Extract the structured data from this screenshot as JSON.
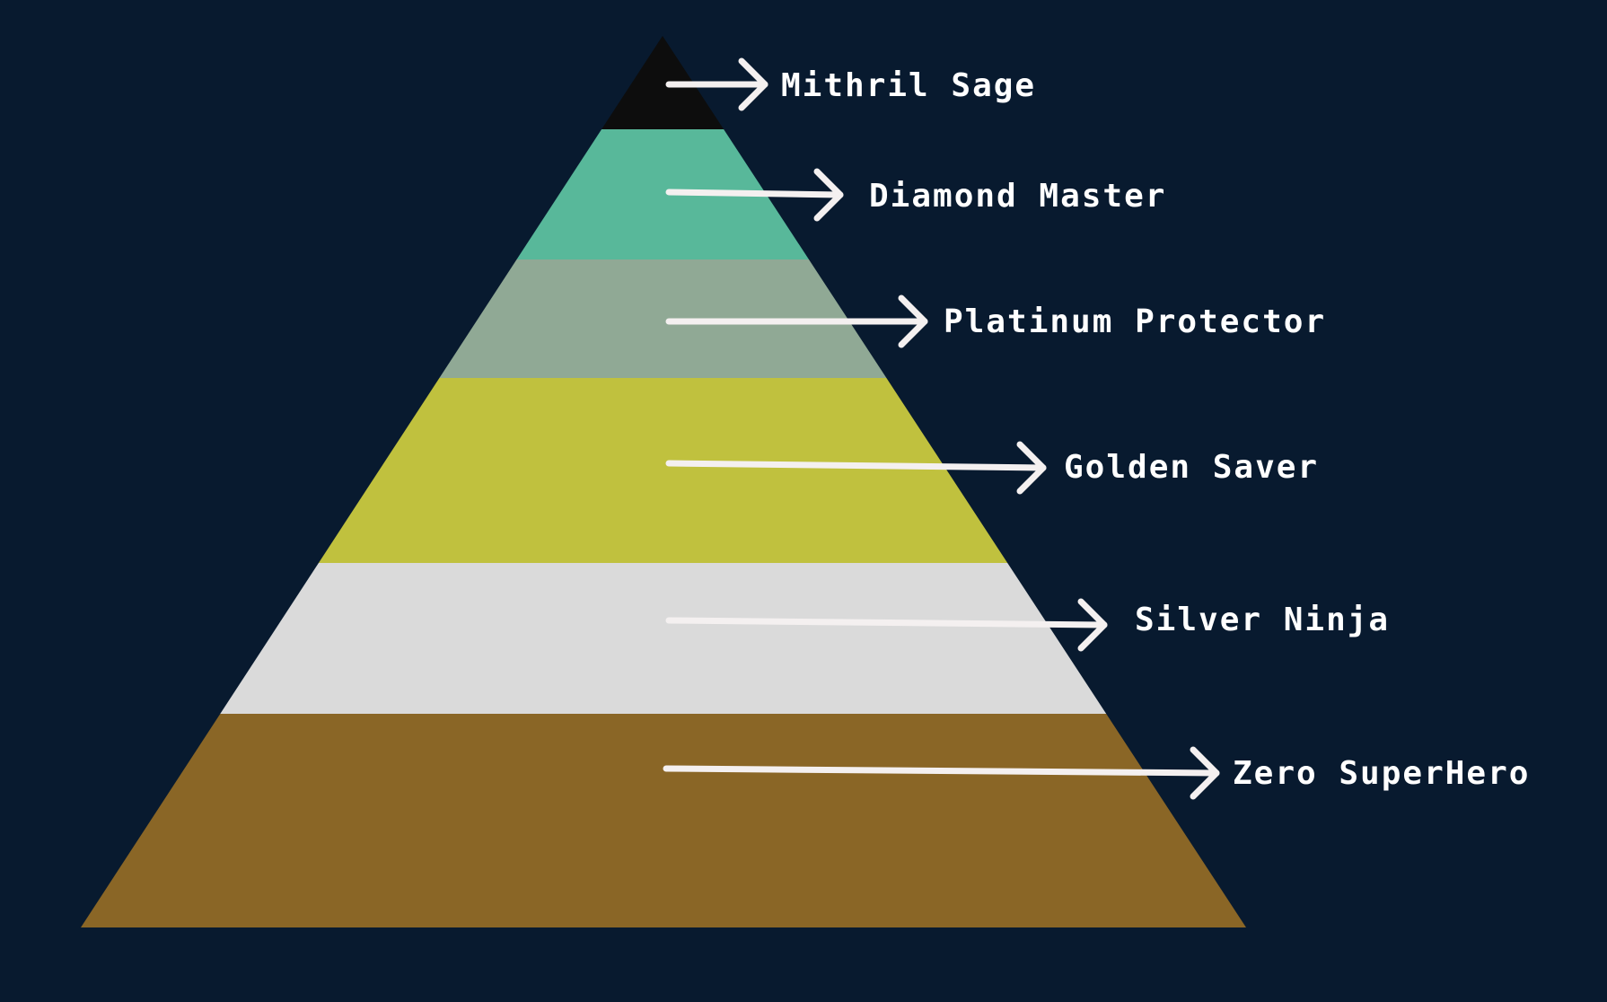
{
  "background_color": "#081a2f",
  "pyramid": {
    "tiers": [
      {
        "label": "Mithril Sage",
        "color": "#0d0d0d"
      },
      {
        "label": "Diamond Master",
        "color": "#58b89a"
      },
      {
        "label": "Platinum Protector",
        "color": "#90a995"
      },
      {
        "label": "Golden Saver",
        "color": "#c0c13e"
      },
      {
        "label": "Silver Ninja",
        "color": "#dadada"
      },
      {
        "label": "Zero SuperHero",
        "color": "#8a6626"
      }
    ]
  }
}
